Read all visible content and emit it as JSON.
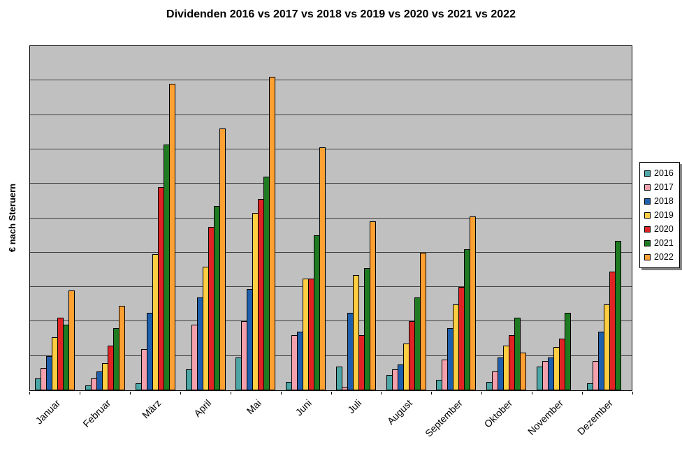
{
  "chart_data": {
    "type": "bar",
    "title": "Dividenden 2016 vs 2017 vs 2018 vs 2019 vs 2020 vs 2021 vs 2022",
    "ylabel": "€ nach Steruern",
    "xlabel": "",
    "categories": [
      "Januar",
      "Februar",
      "März",
      "April",
      "Mai",
      "Juni",
      "Juli",
      "August",
      "September",
      "Oktober",
      "November",
      "Dezember"
    ],
    "series": [
      {
        "name": "2016",
        "color": "#4CA6A6",
        "values": [
          3.5,
          1.5,
          2,
          6,
          9.5,
          2.5,
          7,
          4.5,
          3,
          2.5,
          7,
          2
        ]
      },
      {
        "name": "2017",
        "color": "#F4A0AC",
        "values": [
          6.5,
          3.5,
          12,
          19,
          20,
          16,
          1,
          6,
          9,
          5.5,
          8.5,
          8.5
        ]
      },
      {
        "name": "2018",
        "color": "#1F60AD",
        "values": [
          10,
          5.5,
          22.5,
          27,
          29.5,
          17,
          22.5,
          7.5,
          18,
          9.5,
          9.5,
          17
        ]
      },
      {
        "name": "2019",
        "color": "#FFCD41",
        "values": [
          15.5,
          8,
          39.5,
          36,
          51.5,
          32.5,
          33.5,
          13.5,
          25,
          13,
          12.5,
          25
        ]
      },
      {
        "name": "2020",
        "color": "#E02425",
        "values": [
          21,
          13,
          59,
          47.5,
          55.5,
          32.5,
          16,
          20,
          30,
          16,
          15,
          34.5
        ]
      },
      {
        "name": "2021",
        "color": "#1E7B21",
        "values": [
          19,
          18,
          71.5,
          53.5,
          62,
          45,
          35.5,
          27,
          41,
          21,
          22.5,
          43.5
        ]
      },
      {
        "name": "2022",
        "color": "#FFA033",
        "values": [
          29,
          24.5,
          89,
          76,
          91,
          70.5,
          49,
          40,
          50.5,
          11,
          0,
          0
        ]
      }
    ],
    "ylim": [
      0,
      100
    ],
    "gridline_step": 10,
    "grid": "horizontal gridlines on, no numeric y tick labels visible",
    "legend_position": "right",
    "plot_background": "#C0C0C0",
    "units_note": "Y-axis is unlabeled; values estimated in gridline units (1 gridline interval = 10 units)."
  }
}
